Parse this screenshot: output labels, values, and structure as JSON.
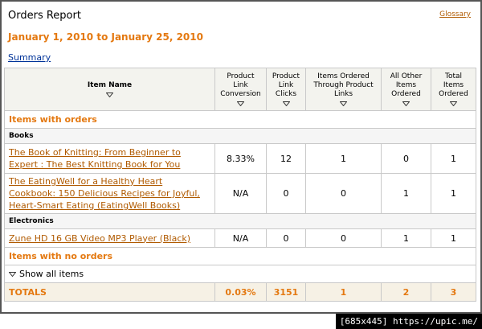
{
  "header": {
    "title": "Orders Report",
    "glossary": "Glossary",
    "date_range": "January 1, 2010 to January 25, 2010",
    "summary": "Summary"
  },
  "table": {
    "columns": [
      "Item Name",
      "Product Link Conversion",
      "Product Link Clicks",
      "Items Ordered Through Product Links",
      "All Other Items Ordered",
      "Total Items Ordered"
    ],
    "sections": [
      {
        "label": "Items with orders",
        "groups": [
          {
            "label": "Books",
            "rows": [
              [
                "The Book of Knitting: From Beginner to Expert : The Best Knitting Book for You",
                "8.33%",
                "12",
                "1",
                "0",
                "1"
              ],
              [
                "The EatingWell for a Healthy Heart Cookbook: 150 Delicious Recipes for Joyful, Heart-Smart Eating (EatingWell Books)",
                "N/A",
                "0",
                "0",
                "1",
                "1"
              ]
            ]
          },
          {
            "label": "Electronics",
            "rows": [
              [
                "Zune HD 16 GB Video MP3 Player (Black)",
                "N/A",
                "0",
                "0",
                "1",
                "1"
              ]
            ]
          }
        ]
      },
      {
        "label": "Items with no orders",
        "toggle": "Show all items"
      }
    ],
    "totals": [
      "TOTALS",
      "0.03%",
      "3151",
      "1",
      "2",
      "3"
    ]
  },
  "watermark": "[685x445] https://upic.me/"
}
